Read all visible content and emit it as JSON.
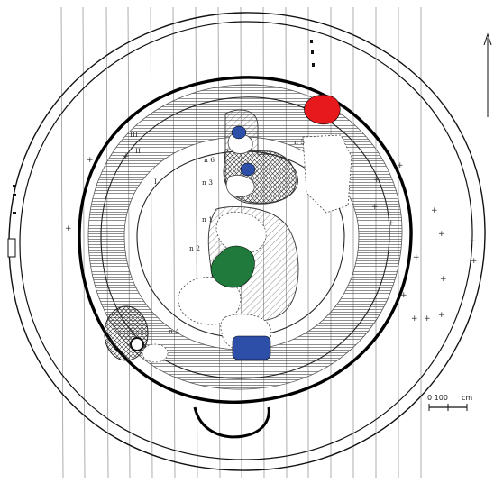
{
  "plan": {
    "labels": {
      "n1": "n 1",
      "n2": "n 2",
      "n3": "n 3",
      "n4": "n 4",
      "n5": "n 5",
      "n6": "n 6",
      "ring_i": "I",
      "ring_ii": "II",
      "ring_iii": "III"
    },
    "scale": {
      "value": "0 100",
      "unit": "cm"
    },
    "north_arrow": "↑",
    "colors": {
      "red_feature": "#e8191c",
      "blue_feature": "#2e4fa8",
      "green_feature": "#1f7a3c",
      "ink": "#111111"
    }
  }
}
